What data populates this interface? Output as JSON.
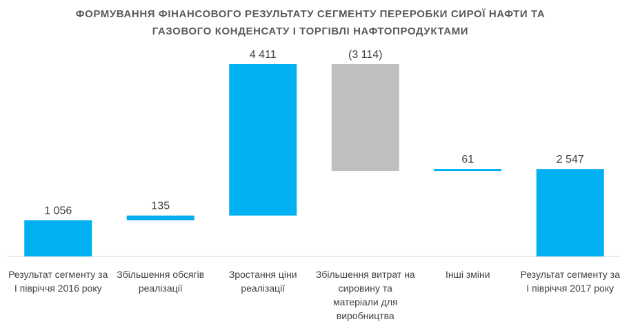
{
  "chart_data": {
    "type": "waterfall",
    "title": "ФОРМУВАННЯ ФІНАНСОВОГО РЕЗУЛЬТАТУ СЕГМЕНТУ ПЕРЕРОБКИ СИРОЇ НАФТИ ТА ГАЗОВОГО КОНДЕНСАТУ І ТОРГІВЛІ НАФТОПРОДУКТАМИ",
    "categories": [
      "Результат сегменту за І півріччя 2016 року",
      "Збільшення обсягів реалізації",
      "Зростання ціни реалізації",
      "Збільшення витрат на сировину та матеріали для виробництва",
      "Інші зміни",
      "Результат сегменту за І півріччя 2017 року"
    ],
    "values": [
      1056,
      135,
      4411,
      -3114,
      61,
      2547
    ],
    "value_labels": [
      "1 056",
      "135",
      "4 411",
      "(3 114)",
      "61",
      "2 547"
    ],
    "colors": {
      "increase": "#00b0f0",
      "decrease": "#bfbfbf",
      "total": "#00b0f0"
    }
  }
}
